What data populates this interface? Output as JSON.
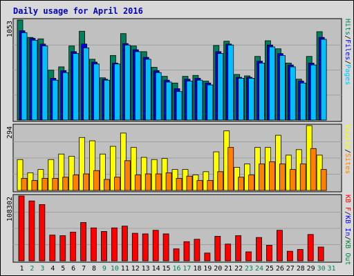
{
  "chart_data": {
    "type": "bar",
    "title": "Daily usage for April 2016",
    "days": [
      "1",
      "2",
      "3",
      "4",
      "5",
      "6",
      "7",
      "8",
      "9",
      "10",
      "11",
      "12",
      "13",
      "14",
      "15",
      "16",
      "17",
      "18",
      "19",
      "20",
      "21",
      "22",
      "23",
      "24",
      "25",
      "26",
      "27",
      "28",
      "29",
      "30",
      "31"
    ],
    "weekend_days": [
      "2",
      "3",
      "9",
      "10",
      "16",
      "17",
      "23",
      "24",
      "30",
      "31"
    ],
    "colors": {
      "hits": "#00805c",
      "files": "#0000e6",
      "pages": "#00c0ff",
      "visits": "#ffff00",
      "sites": "#ff8000",
      "kbf": "#ff0000",
      "kbin": "#0000ff",
      "kbout": "#008040",
      "weekday_label": "#000000",
      "weekend_label": "#00805c",
      "title": "#0000c0",
      "panel_bg": "#c0c0c0",
      "outer_bg": "#d8d8d8"
    },
    "panels": [
      {
        "scale_max_label": "1053",
        "ylim": [
          0,
          1053
        ],
        "legend": [
          {
            "text": "Hits",
            "color": "#00805c"
          },
          {
            "text": "/",
            "color": "#000000"
          },
          {
            "text": "Files",
            "color": "#0000e6"
          },
          {
            "text": "/",
            "color": "#000000"
          },
          {
            "text": "Pages",
            "color": "#00c0ff"
          }
        ],
        "series": [
          {
            "name": "Hits",
            "color": "#00805c",
            "values": [
              1053,
              870,
              855,
              525,
              560,
              780,
              935,
              640,
              445,
              680,
              910,
              780,
              720,
              555,
              460,
              390,
              460,
              470,
              410,
              785,
              830,
              480,
              465,
              670,
              835,
              750,
              600,
              430,
              670,
              930,
              0
            ]
          },
          {
            "name": "Files",
            "color": "#0000e6",
            "values": [
              940,
              860,
              800,
              440,
              520,
              720,
              800,
              610,
              430,
              600,
              805,
              740,
              660,
              520,
              420,
              330,
              430,
              440,
              390,
              720,
              800,
              450,
              450,
              620,
              790,
              700,
              580,
              410,
              600,
              870,
              0
            ]
          },
          {
            "name": "Pages",
            "color": "#00c0ff",
            "values": [
              920,
              840,
              780,
              420,
              500,
              700,
              760,
              590,
              420,
              590,
              790,
              720,
              640,
              500,
              400,
              300,
              410,
              420,
              370,
              700,
              790,
              440,
              440,
              600,
              770,
              680,
              560,
              390,
              580,
              850,
              0
            ]
          }
        ]
      },
      {
        "scale_max_label": "294",
        "ylim": [
          0,
          294
        ],
        "legend": [
          {
            "text": "Visits",
            "color": "#ffff00"
          },
          {
            "text": "/",
            "color": "#000000"
          },
          {
            "text": "Sites",
            "color": "#ff8000"
          }
        ],
        "series": [
          {
            "name": "Visits",
            "color": "#ffff00",
            "values": [
              140,
              80,
              95,
              140,
              165,
              155,
              240,
              225,
              165,
              200,
              260,
              195,
              150,
              140,
              145,
              95,
              95,
              70,
              85,
              175,
              270,
              105,
              120,
              195,
              195,
              250,
              160,
              185,
              294,
              160,
              0
            ]
          },
          {
            "name": "Sites",
            "color": "#ff8000",
            "values": [
              55,
              45,
              55,
              55,
              60,
              70,
              75,
              90,
              50,
              60,
              135,
              70,
              75,
              75,
              80,
              55,
              65,
              45,
              45,
              85,
              195,
              60,
              70,
              120,
              130,
              120,
              95,
              120,
              190,
              95,
              0
            ]
          }
        ]
      },
      {
        "scale_max_label": "108302",
        "ylim": [
          0,
          108302
        ],
        "legend": [
          {
            "text": "KB F",
            "color": "#ff0000"
          },
          {
            "text": "/",
            "color": "#000000"
          },
          {
            "text": "KB In",
            "color": "#0000ff"
          },
          {
            "text": "/",
            "color": "#000000"
          },
          {
            "text": "KB Out",
            "color": "#008040"
          }
        ],
        "series": [
          {
            "name": "KB F",
            "color": "#ff0000",
            "values": [
              108302,
              100000,
              94000,
              43000,
              42000,
              48000,
              64000,
              55000,
              49000,
              55000,
              58000,
              46000,
              45000,
              51000,
              45000,
              20000,
              32000,
              36000,
              13000,
              41000,
              28000,
              42000,
              15000,
              39000,
              26000,
              51000,
              16000,
              19000,
              44000,
              23000,
              0
            ]
          }
        ]
      }
    ]
  }
}
